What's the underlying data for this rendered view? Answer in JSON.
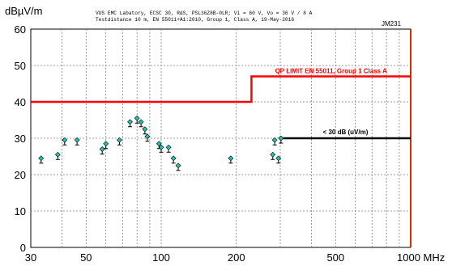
{
  "header": {
    "unit": "dBµV/m",
    "line1": "VUS EMC Labatory, ECSC 30, R&S, PSL36Z8B-0LR; Vi = 60 V, Vo = 36 V / 8 A",
    "line2": "Testdistance 10 m, EN 55011+A1:2010, Group 1, Class A, 19-May-2016",
    "id_tag": "JM231"
  },
  "colors": {
    "limit": "#ff0000",
    "target": "#000000",
    "marker": "#1fc7b4",
    "grid": "#808080",
    "right_edge": "#cc3300"
  },
  "chart_data": {
    "type": "scatter",
    "xscale": "log",
    "xlim": [
      30,
      1000
    ],
    "ylim": [
      0,
      60
    ],
    "x_ticks": [
      30,
      50,
      100,
      200,
      500,
      1000
    ],
    "x_tick_labels": [
      "30",
      "50",
      "100",
      "200",
      "500",
      "1000 MHz"
    ],
    "x_gridlines": [
      40,
      60,
      70,
      80,
      90,
      300,
      400,
      600,
      700,
      800,
      900
    ],
    "y_ticks": [
      0,
      10,
      20,
      30,
      40,
      50,
      60
    ],
    "y_tick_labels": [
      "0",
      "10",
      "20",
      "30",
      "40",
      "50",
      "60"
    ],
    "grid": true,
    "limit_line": {
      "label": "QP LIMIT  EN 55011, Group 1 Class A",
      "points": [
        [
          30,
          40
        ],
        [
          230,
          40
        ],
        [
          230,
          47
        ],
        [
          1000,
          47
        ]
      ]
    },
    "target_line": {
      "label": "< 30 dB (uV/m)",
      "points": [
        [
          300,
          30
        ],
        [
          1000,
          30
        ]
      ]
    },
    "series": [
      {
        "points": [
          [
            33,
            24.5
          ],
          [
            38.5,
            25.5
          ],
          [
            41,
            29.5
          ],
          [
            46,
            29.5
          ],
          [
            58,
            27
          ],
          [
            60,
            28.5
          ],
          [
            68,
            29.5
          ],
          [
            75,
            34.5
          ],
          [
            80,
            35.5
          ],
          [
            83,
            34.5
          ],
          [
            86,
            32.5
          ],
          [
            88,
            30.5
          ],
          [
            98,
            28.5
          ],
          [
            100,
            27.5
          ],
          [
            107,
            27.5
          ],
          [
            112,
            24.5
          ],
          [
            117,
            22.5
          ],
          [
            190,
            24.5
          ],
          [
            280,
            25.5
          ],
          [
            285,
            29.5
          ],
          [
            295,
            24.5
          ],
          [
            302,
            30
          ]
        ]
      }
    ]
  }
}
